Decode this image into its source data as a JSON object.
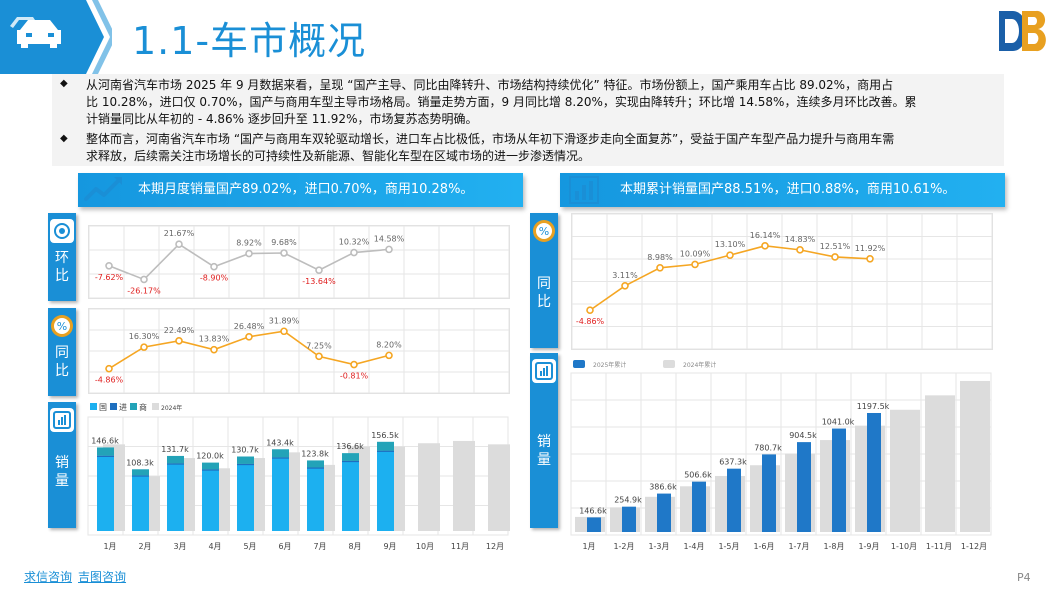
{
  "header": {
    "title": "1.1-车市概况",
    "icon": "car-icon",
    "band_color": "#1a8fd6"
  },
  "summary": {
    "paragraphs": [
      {
        "line1": "从河南省汽车市场 2025 年 9 月数据来看，呈现 “国产主导、同比由降转升、市场结构持续优化” 特征。市场份额上，国产乘用车占比 89.02%，商用占",
        "line2": "比 10.28%，进口仅 0.70%，国产与商用车型主导市场格局。销量走势方面，9 月同比增 8.20%，实现由降转升；环比增 14.58%，连续多月环比改善。累",
        "line3": "计销量同比从年初的 - 4.86% 逐步回升至 11.92%，市场复苏态势明确。"
      },
      {
        "line1": "整体而言，河南省汽车市场 “国产与商用车双轮驱动增长，进口车占比极低，市场从年初下滑逐步走向全面复苏”，受益于国产车型产品力提升与商用车需",
        "line2": "求释放，后续需关注市场增长的可持续性及新能源、智能化车型在区域市场的进一步渗透情况。"
      }
    ]
  },
  "left_banner": {
    "text": "本期月度销量国产89.02%，进口0.70%，商用10.28%。",
    "icon": "trend-line-icon"
  },
  "right_banner": {
    "text": "本期累计销量国产88.51%，进口0.88%，商用10.61%。",
    "icon": "bar-chart-icon"
  },
  "left_tabs": {
    "mom": {
      "line1": "环",
      "line2": "比",
      "icon": "target-icon"
    },
    "yoy": {
      "line1": "同",
      "line2": "比",
      "icon": "percent-icon"
    },
    "sales": {
      "line1": "销",
      "line2": "量",
      "icon": "bar-chart-icon"
    }
  },
  "right_tabs": {
    "yoy": {
      "line1": "同",
      "line2": "比",
      "icon": "percent-icon"
    },
    "sales": {
      "line1": "销",
      "line2": "量",
      "icon": "bar-chart-icon"
    }
  },
  "colors": {
    "primary": "#1a8fd6",
    "gray_line": "#bdbdbd",
    "orange_line": "#f5a623",
    "negative_label": "#e02020",
    "bar_domestic": "#1cb0f0",
    "bar_import": "#1e6fbf",
    "bar_commercial": "#23a3b8",
    "bar_2024": "#dcdcdc",
    "bar_cum_2025": "#1f78c8"
  },
  "chart_data": [
    {
      "id": "monthly-mom",
      "type": "line",
      "x": [
        "1月",
        "2月",
        "3月",
        "4月",
        "5月",
        "6月",
        "7月",
        "8月",
        "9月"
      ],
      "values": [
        -7.62,
        -26.17,
        21.67,
        -8.9,
        8.92,
        9.68,
        -13.64,
        10.32,
        14.58
      ],
      "labels": [
        "-7.62%",
        "-26.17%",
        "21.67%",
        "-8.90%",
        "8.92%",
        "9.68%",
        "-13.64%",
        "10.32%",
        "14.58%"
      ],
      "ylim": [
        -35,
        30
      ]
    },
    {
      "id": "monthly-yoy",
      "type": "line",
      "x": [
        "1月",
        "2月",
        "3月",
        "4月",
        "5月",
        "6月",
        "7月",
        "8月",
        "9月"
      ],
      "values": [
        -4.86,
        16.3,
        22.49,
        13.83,
        26.48,
        31.89,
        7.25,
        -0.81,
        8.2
      ],
      "labels": [
        "-4.86%",
        "16.30%",
        "22.49%",
        "13.83%",
        "26.48%",
        "31.89%",
        "7.25%",
        "-0.81%",
        "8.20%"
      ],
      "ylim": [
        -15,
        40
      ]
    },
    {
      "id": "monthly-sales",
      "type": "bar",
      "legend": [
        "国",
        "进",
        "商",
        "2024年"
      ],
      "categories": [
        "1月",
        "2月",
        "3月",
        "4月",
        "5月",
        "6月",
        "7月",
        "8月",
        "9月",
        "10月",
        "11月",
        "12月"
      ],
      "totals": [
        146.6,
        108.3,
        131.7,
        120.0,
        130.7,
        143.4,
        123.8,
        136.6,
        156.5,
        null,
        null,
        null
      ],
      "total_labels": [
        "146.6k",
        "108.3k",
        "131.7k",
        "120.0k",
        "130.7k",
        "143.4k",
        "123.8k",
        "136.6k",
        "156.5k",
        "",
        "",
        ""
      ],
      "commercial_share": 0.1,
      "series_2024": [
        152,
        96,
        128,
        110,
        128,
        138,
        116,
        148,
        148,
        154,
        158,
        152
      ],
      "ylim": [
        0,
        200
      ]
    },
    {
      "id": "cumulative-yoy",
      "type": "line",
      "x": [
        "1月",
        "1-2月",
        "1-3月",
        "1-4月",
        "1-5月",
        "1-6月",
        "1-7月",
        "1-8月",
        "1-9月"
      ],
      "values": [
        -4.86,
        3.11,
        8.98,
        10.09,
        13.1,
        16.14,
        14.83,
        12.51,
        11.92
      ],
      "labels": [
        "-4.86%",
        "3.11%",
        "8.98%",
        "10.09%",
        "13.10%",
        "16.14%",
        "14.83%",
        "12.51%",
        "11.92%"
      ],
      "ylim": [
        -10,
        20
      ]
    },
    {
      "id": "cumulative-sales",
      "type": "bar",
      "legend": [
        "2025年累计",
        "2024年累计"
      ],
      "categories": [
        "1月",
        "1-2月",
        "1-3月",
        "1-4月",
        "1-5月",
        "1-6月",
        "1-7月",
        "1-8月",
        "1-9月",
        "1-10月",
        "1-11月",
        "1-12月"
      ],
      "values_2025": [
        146.6,
        254.9,
        386.6,
        506.6,
        637.3,
        780.7,
        904.5,
        1041.0,
        1197.5,
        null,
        null,
        null
      ],
      "labels_2025": [
        "146.6k",
        "254.9k",
        "386.6k",
        "506.6k",
        "637.3k",
        "780.7k",
        "904.5k",
        "1041.0k",
        "1197.5k",
        "",
        "",
        ""
      ],
      "values_2024": [
        152,
        248,
        354,
        460,
        564,
        672,
        790,
        925,
        1070,
        1230,
        1375,
        1520
      ],
      "ylim": [
        0,
        1600
      ]
    }
  ],
  "footer": {
    "brand1": "求信咨询",
    "brand2": "吉图咨询",
    "page": "P4"
  }
}
